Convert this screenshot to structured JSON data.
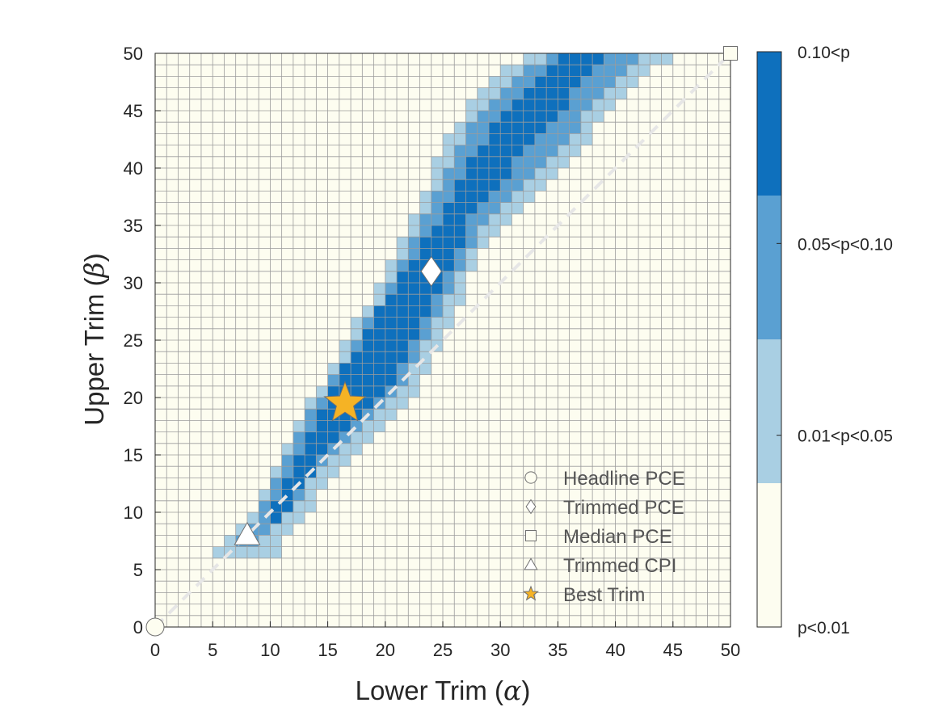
{
  "chart_data": {
    "type": "heatmap",
    "title": "",
    "xlabel_text": "Lower Trim (",
    "xlabel_symbol": "α",
    "ylabel_text": "Upper Trim (",
    "ylabel_symbol": "β",
    "label_close": ")",
    "xlim": [
      0,
      50
    ],
    "ylim": [
      0,
      50
    ],
    "xticks": [
      "0",
      "5",
      "10",
      "15",
      "20",
      "25",
      "30",
      "35",
      "40",
      "45",
      "50"
    ],
    "yticks": [
      "0",
      "5",
      "10",
      "15",
      "20",
      "25",
      "30",
      "35",
      "40",
      "45",
      "50"
    ],
    "grid_step": 1,
    "grid": true,
    "colorbar": {
      "levels": [
        {
          "label": "p<0.01",
          "color": "#fdfdf0"
        },
        {
          "label": "0.01<p<0.05",
          "color": "#a9cfe3"
        },
        {
          "label": "0.05<p<0.10",
          "color": "#5aa0d2"
        },
        {
          "label": "0.10<p",
          "color": "#0e70bd"
        }
      ],
      "tick_labels": [
        "p<0.01",
        "0.01<p<0.05",
        "0.05<p<0.10",
        "0.10<p"
      ]
    },
    "regions": {
      "note": "For each upper trim beta (row), lower-trim alpha column range [from, to] per significance level",
      "level1": [
        [
          6,
          5,
          10
        ],
        [
          7,
          6,
          10
        ],
        [
          8,
          7,
          11
        ],
        [
          9,
          8,
          12
        ],
        [
          10,
          9,
          13
        ],
        [
          11,
          9,
          13
        ],
        [
          12,
          10,
          14
        ],
        [
          13,
          10,
          15
        ],
        [
          14,
          11,
          16
        ],
        [
          15,
          11,
          17
        ],
        [
          16,
          12,
          18
        ],
        [
          17,
          12,
          19
        ],
        [
          18,
          13,
          20
        ],
        [
          19,
          13,
          21
        ],
        [
          20,
          14,
          22
        ],
        [
          21,
          15,
          22
        ],
        [
          22,
          15,
          23
        ],
        [
          23,
          16,
          23
        ],
        [
          24,
          16,
          24
        ],
        [
          25,
          17,
          24
        ],
        [
          26,
          17,
          25
        ],
        [
          27,
          18,
          25
        ],
        [
          28,
          19,
          26
        ],
        [
          29,
          19,
          26
        ],
        [
          30,
          20,
          26
        ],
        [
          31,
          20,
          27
        ],
        [
          32,
          21,
          27
        ],
        [
          33,
          21,
          28
        ],
        [
          34,
          22,
          29
        ],
        [
          35,
          22,
          30
        ],
        [
          36,
          23,
          31
        ],
        [
          37,
          23,
          32
        ],
        [
          38,
          24,
          33
        ],
        [
          39,
          24,
          34
        ],
        [
          40,
          24,
          35
        ],
        [
          41,
          25,
          36
        ],
        [
          42,
          25,
          37
        ],
        [
          43,
          26,
          37
        ],
        [
          44,
          27,
          38
        ],
        [
          45,
          27,
          39
        ],
        [
          46,
          28,
          40
        ],
        [
          47,
          29,
          41
        ],
        [
          48,
          30,
          42
        ],
        [
          49,
          32,
          44
        ]
      ],
      "level2": [
        [
          7,
          7,
          8
        ],
        [
          8,
          8,
          9
        ],
        [
          9,
          9,
          10
        ],
        [
          10,
          9,
          11
        ],
        [
          11,
          10,
          12
        ],
        [
          12,
          10,
          12
        ],
        [
          13,
          11,
          13
        ],
        [
          14,
          11,
          14
        ],
        [
          15,
          12,
          15
        ],
        [
          16,
          12,
          16
        ],
        [
          17,
          13,
          17
        ],
        [
          18,
          13,
          18
        ],
        [
          19,
          14,
          19
        ],
        [
          20,
          15,
          20
        ],
        [
          21,
          15,
          21
        ],
        [
          22,
          16,
          21
        ],
        [
          23,
          17,
          22
        ],
        [
          24,
          17,
          22
        ],
        [
          25,
          18,
          23
        ],
        [
          26,
          18,
          23
        ],
        [
          27,
          19,
          24
        ],
        [
          28,
          20,
          24
        ],
        [
          29,
          20,
          25
        ],
        [
          30,
          21,
          25
        ],
        [
          31,
          21,
          26
        ],
        [
          32,
          22,
          26
        ],
        [
          33,
          22,
          27
        ],
        [
          34,
          23,
          27
        ],
        [
          35,
          23,
          28
        ],
        [
          36,
          24,
          29
        ],
        [
          37,
          24,
          30
        ],
        [
          38,
          25,
          31
        ],
        [
          39,
          25,
          32
        ],
        [
          40,
          26,
          33
        ],
        [
          41,
          26,
          34
        ],
        [
          42,
          27,
          35
        ],
        [
          43,
          27,
          36
        ],
        [
          44,
          28,
          36
        ],
        [
          45,
          29,
          37
        ],
        [
          46,
          30,
          38
        ],
        [
          47,
          31,
          39
        ],
        [
          48,
          32,
          40
        ],
        [
          49,
          34,
          41
        ]
      ],
      "level3": [
        [
          9,
          10,
          10
        ],
        [
          10,
          10,
          11
        ],
        [
          11,
          11,
          11
        ],
        [
          12,
          11,
          12
        ],
        [
          13,
          12,
          13
        ],
        [
          14,
          12,
          13
        ],
        [
          15,
          13,
          14
        ],
        [
          16,
          13,
          15
        ],
        [
          17,
          14,
          16
        ],
        [
          18,
          14,
          17
        ],
        [
          19,
          15,
          18
        ],
        [
          20,
          15,
          19
        ],
        [
          21,
          16,
          20
        ],
        [
          22,
          16,
          20
        ],
        [
          23,
          17,
          21
        ],
        [
          24,
          18,
          21
        ],
        [
          25,
          18,
          22
        ],
        [
          26,
          19,
          22
        ],
        [
          27,
          19,
          23
        ],
        [
          28,
          20,
          23
        ],
        [
          29,
          21,
          24
        ],
        [
          30,
          21,
          24
        ],
        [
          31,
          22,
          25
        ],
        [
          32,
          23,
          25
        ],
        [
          33,
          23,
          26
        ],
        [
          34,
          24,
          26
        ],
        [
          35,
          25,
          26
        ],
        [
          36,
          25,
          27
        ],
        [
          37,
          26,
          28
        ],
        [
          38,
          26,
          29
        ],
        [
          39,
          27,
          30
        ],
        [
          40,
          27,
          30
        ],
        [
          41,
          28,
          31
        ],
        [
          42,
          29,
          32
        ],
        [
          43,
          29,
          33
        ],
        [
          44,
          30,
          34
        ],
        [
          45,
          31,
          35
        ],
        [
          46,
          32,
          35
        ],
        [
          47,
          33,
          36
        ],
        [
          48,
          34,
          37
        ],
        [
          49,
          35,
          38
        ]
      ]
    },
    "diagonal_line": {
      "from": [
        0,
        0
      ],
      "to": [
        50,
        50
      ],
      "color": "#e6e6e6",
      "style": "dashed"
    },
    "markers": [
      {
        "name": "Headline PCE",
        "shape": "circle",
        "x": 0,
        "y": 0,
        "fill": "#fdfdf0"
      },
      {
        "name": "Trimmed PCE",
        "shape": "diamond",
        "x": 24,
        "y": 31,
        "fill": "#ffffff"
      },
      {
        "name": "Median PCE",
        "shape": "square",
        "x": 50,
        "y": 50,
        "fill": "#fdfdf0"
      },
      {
        "name": "Trimmed CPI",
        "shape": "triangle",
        "x": 8,
        "y": 8,
        "fill": "#ffffff"
      },
      {
        "name": "Best Trim",
        "shape": "star",
        "x": 16.5,
        "y": 19.5,
        "fill": "#f5b325"
      }
    ],
    "legend": {
      "position": "bottom-right",
      "entries": [
        "Headline PCE",
        "Trimmed PCE",
        "Median PCE",
        "Trimmed CPI",
        "Best Trim"
      ]
    }
  }
}
